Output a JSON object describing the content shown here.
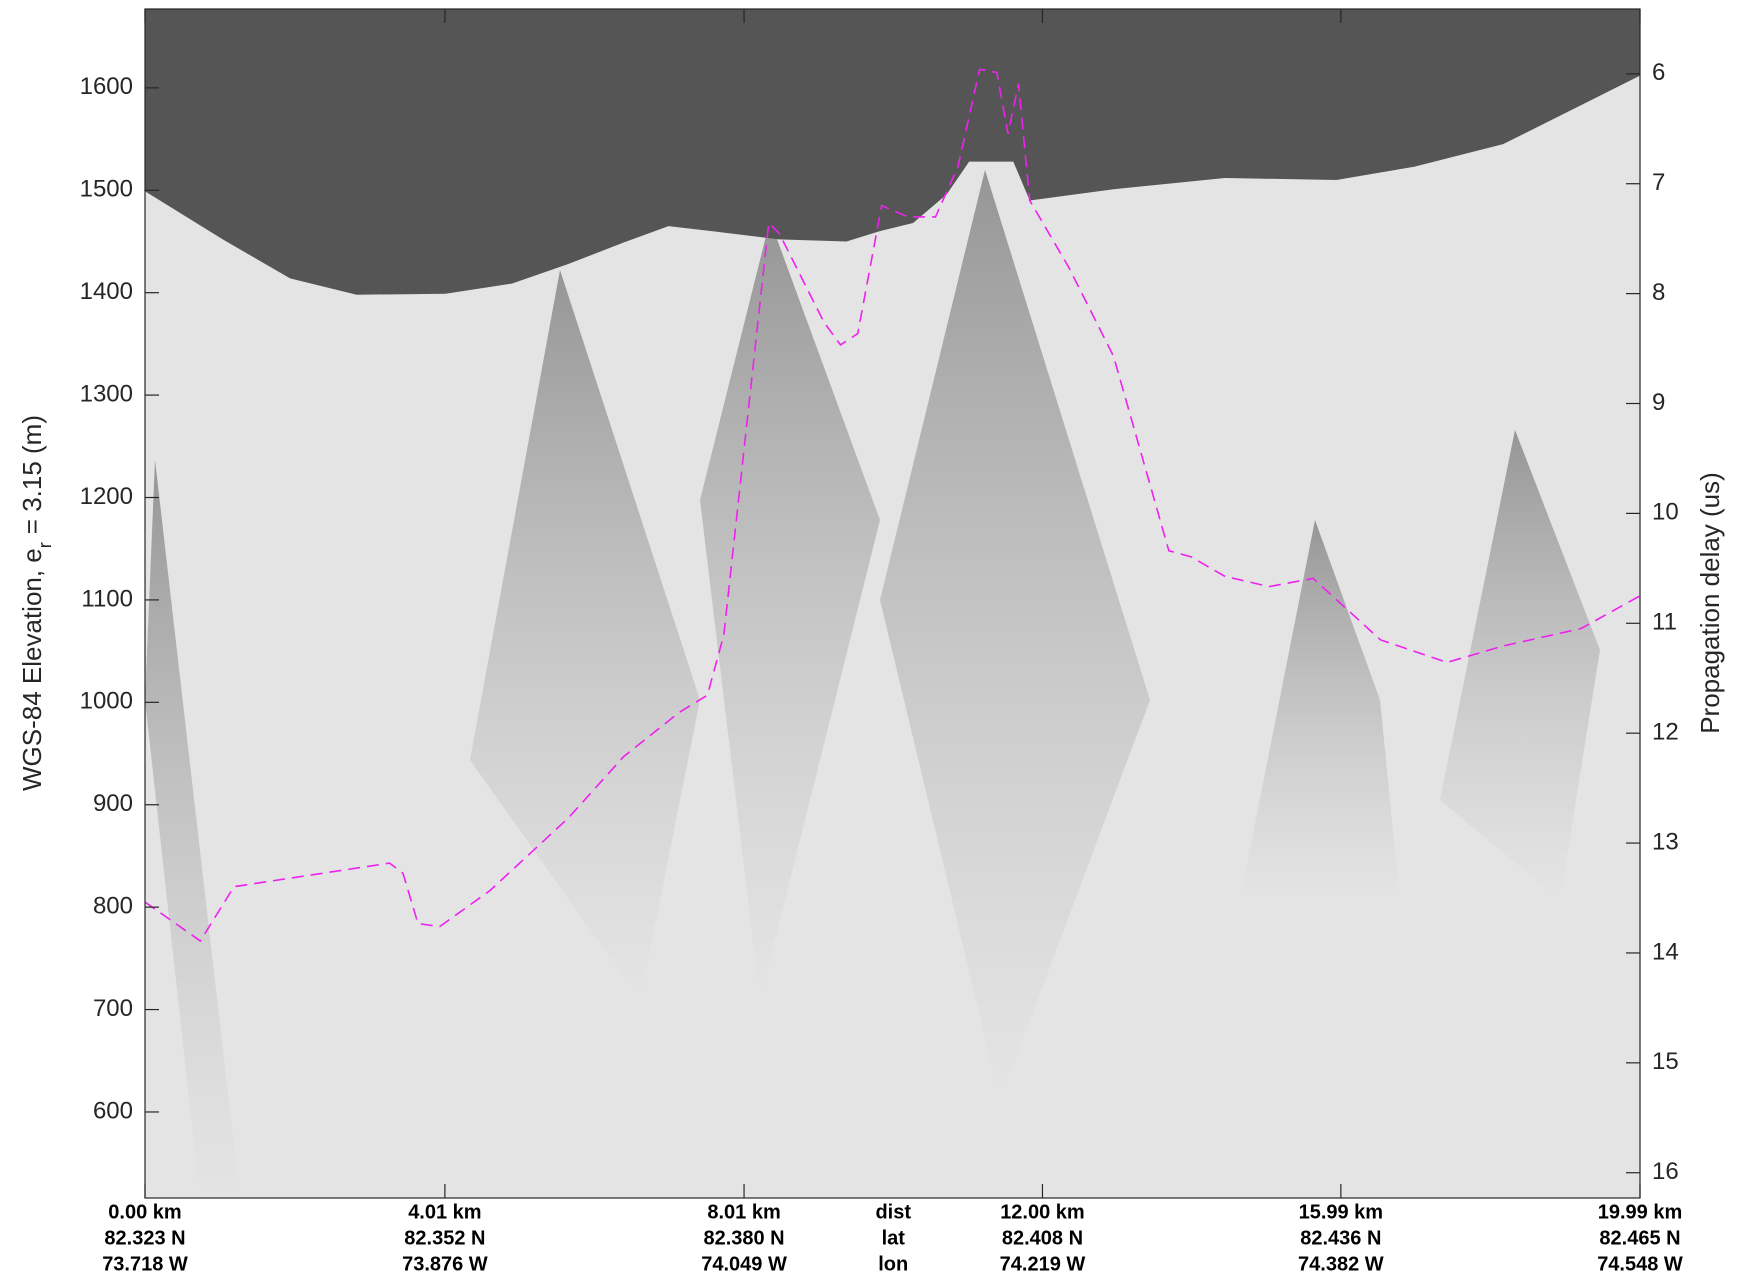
{
  "chart_data": {
    "type": "line",
    "xlim": [
      0,
      19.99
    ],
    "ylim": [
      516,
      1677
    ],
    "y2lim": [
      16.23,
      5.41
    ],
    "xticks": [
      {
        "value": 0,
        "label": "0.00 km"
      },
      {
        "value": 4.01,
        "label": "4.01 km"
      },
      {
        "value": 8.01,
        "label": "8.01 km"
      },
      {
        "value": 12.0,
        "label": "12.00 km"
      },
      {
        "value": 15.99,
        "label": "15.99 km"
      },
      {
        "value": 19.99,
        "label": "19.99 km"
      }
    ],
    "xtick_lat": [
      "82.323 N",
      "82.352 N",
      "82.380 N",
      "82.408 N",
      "82.436 N",
      "82.465 N"
    ],
    "xtick_lon": [
      "73.718 W",
      "73.876 W",
      "74.049 W",
      "74.219 W",
      "74.382 W",
      "74.548 W"
    ],
    "row_labels": [
      "dist",
      "lat",
      "lon"
    ],
    "yticks": [
      600,
      700,
      800,
      900,
      1000,
      1100,
      1200,
      1300,
      1400,
      1500,
      1600
    ],
    "y2ticks": [
      6,
      7,
      8,
      9,
      10,
      11,
      12,
      13,
      14,
      15,
      16
    ],
    "ylabel": "WGS-84 Elevation, e",
    "ylabel_sub": "r",
    "ylabel_rest": "= 3.15 (m)",
    "y2label": "Propagation delay (us)",
    "series": [
      {
        "type": "area",
        "color": "#555555",
        "x": [
          0,
          1.04,
          1.94,
          2.83,
          4.02,
          4.91,
          5.66,
          6.4,
          7.0,
          7.59,
          8.48,
          9.38,
          9.82,
          10.27,
          10.72,
          11.02,
          11.61,
          11.83,
          12.95,
          14.44,
          15.93,
          16.97,
          18.16,
          19.2,
          19.99
        ],
        "values": [
          1499,
          1452,
          1414,
          1398,
          1399,
          1409,
          1428,
          1449,
          1465,
          1460,
          1452,
          1450,
          1460,
          1468,
          1496,
          1528,
          1528,
          1490,
          1501,
          1512,
          1510,
          1523,
          1545,
          1583,
          1612
        ]
      },
      {
        "type": "line",
        "color": "#ee22ee",
        "dashed": true,
        "x": [
          0,
          0.74,
          1.19,
          3.27,
          3.45,
          3.65,
          3.94,
          4.61,
          5.66,
          6.4,
          7.14,
          7.52,
          7.74,
          8.34,
          8.48,
          9.08,
          9.3,
          9.53,
          9.85,
          10.2,
          10.57,
          10.87,
          11.16,
          11.39,
          11.54,
          11.68,
          11.83,
          12.35,
          12.95,
          13.69,
          13.99,
          14.44,
          15.03,
          15.62,
          16.52,
          17.41,
          18.16,
          19.2,
          19.99
        ],
        "values": [
          805,
          767,
          820,
          843,
          833,
          784,
          781,
          816,
          887,
          947,
          990,
          1007,
          1066,
          1468,
          1458,
          1371,
          1349,
          1360,
          1485,
          1474,
          1474,
          1523,
          1618,
          1615,
          1555,
          1604,
          1490,
          1425,
          1338,
          1148,
          1142,
          1123,
          1113,
          1121,
          1061,
          1039,
          1055,
          1072,
          1104
        ]
      }
    ]
  }
}
